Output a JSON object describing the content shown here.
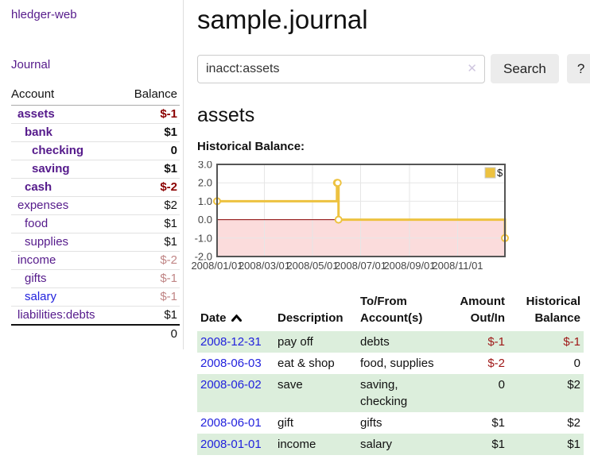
{
  "sidebar": {
    "brand": "hledger-web",
    "nav": [
      {
        "label": "Journal"
      }
    ],
    "accounts_table": {
      "headers": [
        "Account",
        "Balance"
      ],
      "rows": [
        {
          "name": "assets",
          "depth": 1,
          "bold": true,
          "balance": "$-1",
          "negative": true,
          "link_color": "purple"
        },
        {
          "name": "bank",
          "depth": 2,
          "bold": true,
          "balance": "$1",
          "negative": false,
          "link_color": "purple"
        },
        {
          "name": "checking",
          "depth": 3,
          "bold": true,
          "balance": "0",
          "negative": false,
          "link_color": "purple"
        },
        {
          "name": "saving",
          "depth": 3,
          "bold": true,
          "balance": "$1",
          "negative": false,
          "link_color": "purple"
        },
        {
          "name": "cash",
          "depth": 2,
          "bold": true,
          "balance": "$-2",
          "negative": true,
          "link_color": "purple"
        },
        {
          "name": "expenses",
          "depth": 1,
          "bold": false,
          "balance": "$2",
          "negative": false,
          "link_color": "purple"
        },
        {
          "name": "food",
          "depth": 2,
          "bold": false,
          "balance": "$1",
          "negative": false,
          "link_color": "purple"
        },
        {
          "name": "supplies",
          "depth": 2,
          "bold": false,
          "balance": "$1",
          "negative": false,
          "link_color": "purple"
        },
        {
          "name": "income",
          "depth": 1,
          "bold": false,
          "balance": "$-2",
          "negative": true,
          "link_color": "purple"
        },
        {
          "name": "gifts",
          "depth": 2,
          "bold": false,
          "balance": "$-1",
          "negative": true,
          "link_color": "purple"
        },
        {
          "name": "salary",
          "depth": 2,
          "bold": false,
          "balance": "$-1",
          "negative": true,
          "link_color": "blue"
        },
        {
          "name": "liabilities:debts",
          "depth": 1,
          "bold": false,
          "balance": "$1",
          "negative": false,
          "link_color": "purple"
        }
      ],
      "total": "0"
    }
  },
  "header": {
    "title": "sample.journal"
  },
  "search": {
    "value": "inacct:assets",
    "clear_icon": "✕",
    "button_label": "Search",
    "help_label": "?"
  },
  "account_page": {
    "title": "assets",
    "chart_label": "Historical Balance:"
  },
  "chart_data": {
    "type": "line",
    "title": "Historical Balance",
    "step": true,
    "grid": true,
    "legend_position": "top-right",
    "series": [
      {
        "name": "$",
        "color": "#edc240",
        "points": [
          [
            "2008-01-01",
            1
          ],
          [
            "2008-06-01",
            2
          ],
          [
            "2008-06-02",
            2
          ],
          [
            "2008-06-03",
            0
          ],
          [
            "2008-12-31",
            -1
          ]
        ]
      }
    ],
    "xlim": [
      "2008-01-01",
      "2008-12-31"
    ],
    "ylim": [
      -2,
      3
    ],
    "ytick_labels": [
      "3.0",
      "2.0",
      "1.0",
      "0.0",
      "-1.0",
      "-2.0"
    ],
    "ytick_values": [
      3,
      2,
      1,
      0,
      -1,
      -2
    ],
    "xtick_labels": [
      "2008/01/01",
      "2008/03/01",
      "2008/05/01",
      "2008/07/01",
      "2008/09/01",
      "2008/11/01"
    ],
    "xtick_dates": [
      "2008-01-01",
      "2008-03-01",
      "2008-05-01",
      "2008-07-01",
      "2008-09-01",
      "2008-11-01"
    ],
    "negative_region_color": "#fbdcdc",
    "zero_line_color": "#8b0000",
    "grid_color": "#e6e6e6",
    "border_color": "#555555"
  },
  "register_table": {
    "headers": [
      "Date",
      "Description",
      "To/From Account(s)",
      "Amount Out/In",
      "Historical Balance"
    ],
    "rows": [
      {
        "date": "2008-12-31",
        "description": "pay off",
        "accounts": [
          "debts"
        ],
        "amount": "$-1",
        "amount_negative": true,
        "balance": "$-1",
        "balance_negative": true
      },
      {
        "date": "2008-06-03",
        "description": "eat & shop",
        "accounts": [
          "food",
          "supplies"
        ],
        "amount": "$-2",
        "amount_negative": true,
        "balance": "0",
        "balance_negative": false
      },
      {
        "date": "2008-06-02",
        "description": "save",
        "accounts": [
          "saving",
          "checking"
        ],
        "amount": "0",
        "amount_negative": false,
        "balance": "$2",
        "balance_negative": false
      },
      {
        "date": "2008-06-01",
        "description": "gift",
        "accounts": [
          "gifts"
        ],
        "amount": "$1",
        "amount_negative": false,
        "balance": "$2",
        "balance_negative": false
      },
      {
        "date": "2008-01-01",
        "description": "income",
        "accounts": [
          "salary"
        ],
        "amount": "$1",
        "amount_negative": false,
        "balance": "$1",
        "balance_negative": false
      }
    ]
  }
}
